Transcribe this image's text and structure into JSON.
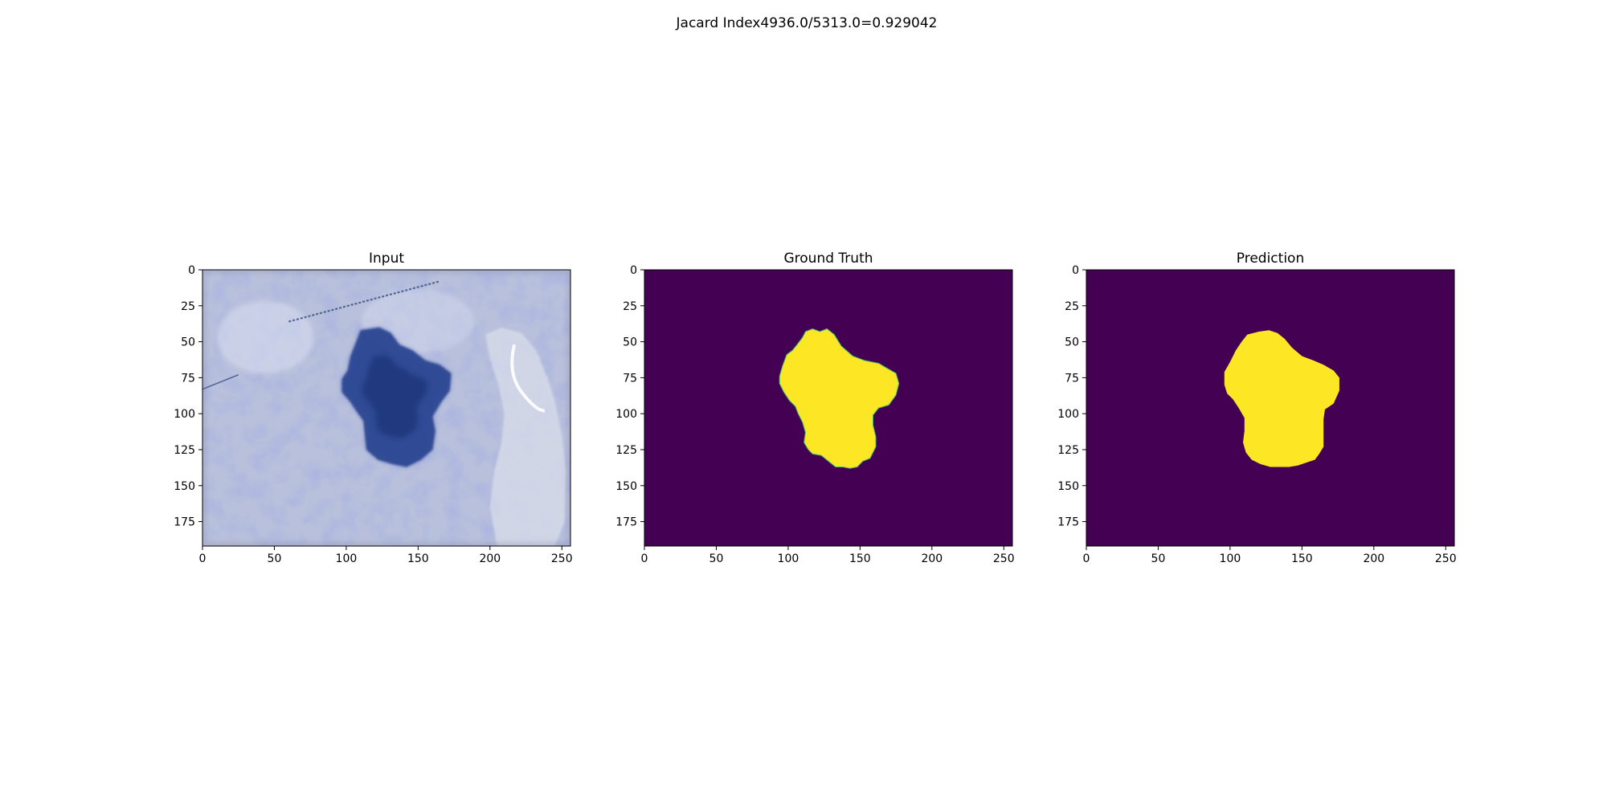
{
  "suptitle": "Jacard Index4936.0/5313.0=0.929042",
  "colors": {
    "background": "#440154",
    "foreground": "#fde725",
    "mask_edge": "#3fbc73",
    "axes": "#000000"
  },
  "chart_data": [
    {
      "type": "image",
      "title": "Input",
      "xlim": [
        0,
        256
      ],
      "ylim": [
        192,
        0
      ],
      "xticks": [
        0,
        50,
        100,
        150,
        200,
        250
      ],
      "yticks": [
        0,
        25,
        50,
        75,
        100,
        125,
        150,
        175
      ],
      "content": "dermoscopy-photo",
      "lesion_outline": [
        [
          110,
          42
        ],
        [
          123,
          40
        ],
        [
          131,
          44
        ],
        [
          137,
          52
        ],
        [
          146,
          56
        ],
        [
          155,
          63
        ],
        [
          165,
          66
        ],
        [
          173,
          72
        ],
        [
          172,
          84
        ],
        [
          166,
          92
        ],
        [
          160,
          102
        ],
        [
          162,
          112
        ],
        [
          160,
          125
        ],
        [
          152,
          132
        ],
        [
          142,
          137
        ],
        [
          132,
          135
        ],
        [
          122,
          132
        ],
        [
          114,
          125
        ],
        [
          113,
          115
        ],
        [
          112,
          105
        ],
        [
          107,
          98
        ],
        [
          103,
          92
        ],
        [
          97,
          85
        ],
        [
          97,
          76
        ],
        [
          101,
          70
        ],
        [
          103,
          60
        ],
        [
          107,
          50
        ]
      ],
      "bluish_streak": [
        [
          60,
          36
        ],
        [
          165,
          8
        ]
      ],
      "left_streak": [
        [
          0,
          83
        ],
        [
          25,
          73
        ]
      ]
    },
    {
      "type": "heatmap",
      "title": "Ground Truth",
      "xlim": [
        0,
        256
      ],
      "ylim": [
        192,
        0
      ],
      "xticks": [
        0,
        50,
        100,
        150,
        200,
        250
      ],
      "yticks": [
        0,
        25,
        50,
        75,
        100,
        125,
        150,
        175
      ],
      "classes": [
        0,
        1
      ],
      "mask_outline": [
        [
          112,
          43
        ],
        [
          117,
          41
        ],
        [
          122,
          43
        ],
        [
          127,
          41
        ],
        [
          132,
          45
        ],
        [
          137,
          53
        ],
        [
          145,
          60
        ],
        [
          153,
          63
        ],
        [
          163,
          65
        ],
        [
          168,
          68
        ],
        [
          175,
          72
        ],
        [
          177,
          79
        ],
        [
          175,
          87
        ],
        [
          170,
          94
        ],
        [
          163,
          96
        ],
        [
          159,
          101
        ],
        [
          159,
          108
        ],
        [
          161,
          116
        ],
        [
          161,
          123
        ],
        [
          157,
          131
        ],
        [
          152,
          133
        ],
        [
          148,
          137
        ],
        [
          143,
          138
        ],
        [
          138,
          137
        ],
        [
          133,
          137
        ],
        [
          128,
          133
        ],
        [
          123,
          129
        ],
        [
          117,
          128
        ],
        [
          114,
          125
        ],
        [
          111,
          120
        ],
        [
          112,
          113
        ],
        [
          110,
          106
        ],
        [
          107,
          100
        ],
        [
          105,
          95
        ],
        [
          101,
          91
        ],
        [
          97,
          85
        ],
        [
          94,
          79
        ],
        [
          94,
          74
        ],
        [
          96,
          67
        ],
        [
          99,
          59
        ],
        [
          103,
          56
        ],
        [
          107,
          51
        ],
        [
          110,
          47
        ]
      ]
    },
    {
      "type": "heatmap",
      "title": "Prediction",
      "xlim": [
        0,
        256
      ],
      "ylim": [
        192,
        0
      ],
      "xticks": [
        0,
        50,
        100,
        150,
        200,
        250
      ],
      "yticks": [
        0,
        25,
        50,
        75,
        100,
        125,
        150,
        175
      ],
      "classes": [
        0,
        1
      ],
      "mask_outline": [
        [
          112,
          45
        ],
        [
          120,
          43
        ],
        [
          127,
          42
        ],
        [
          133,
          44
        ],
        [
          138,
          48
        ],
        [
          143,
          54
        ],
        [
          150,
          60
        ],
        [
          158,
          63
        ],
        [
          165,
          66
        ],
        [
          172,
          70
        ],
        [
          176,
          75
        ],
        [
          176,
          84
        ],
        [
          172,
          93
        ],
        [
          166,
          97
        ],
        [
          165,
          104
        ],
        [
          165,
          112
        ],
        [
          165,
          123
        ],
        [
          162,
          128
        ],
        [
          159,
          132
        ],
        [
          153,
          134
        ],
        [
          147,
          136
        ],
        [
          141,
          137
        ],
        [
          135,
          137
        ],
        [
          128,
          137
        ],
        [
          121,
          135
        ],
        [
          115,
          132
        ],
        [
          111,
          127
        ],
        [
          109,
          120
        ],
        [
          110,
          112
        ],
        [
          110,
          103
        ],
        [
          106,
          96
        ],
        [
          102,
          90
        ],
        [
          98,
          86
        ],
        [
          96,
          80
        ],
        [
          96,
          71
        ],
        [
          100,
          64
        ],
        [
          104,
          56
        ],
        [
          108,
          50
        ]
      ]
    }
  ]
}
